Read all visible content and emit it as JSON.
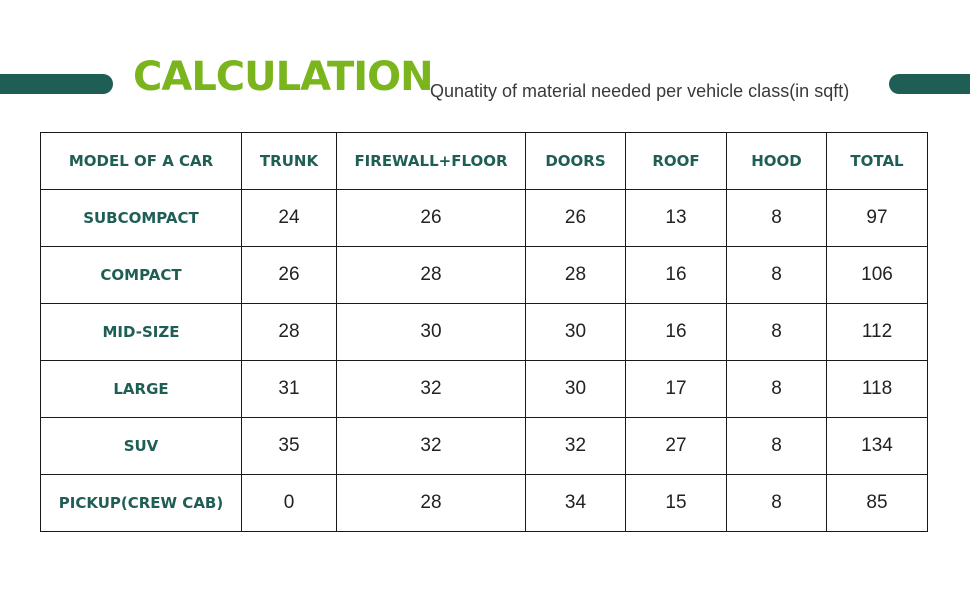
{
  "header": {
    "title": "CALCULATION",
    "subtitle": "Qunatity of material needed per vehicle class(in sqft)"
  },
  "colors": {
    "title_green": "#7ab51d",
    "accent_teal": "#1f5e55"
  },
  "chart_data": {
    "type": "table",
    "columns": [
      "MODEL OF A CAR",
      "TRUNK",
      "FIREWALL+FLOOR",
      "DOORS",
      "ROOF",
      "HOOD",
      "TOTAL"
    ],
    "rows": [
      {
        "model": "SUBCOMPACT",
        "values": [
          "24",
          "26",
          "26",
          "13",
          "8",
          "97"
        ]
      },
      {
        "model": "COMPACT",
        "values": [
          "26",
          "28",
          "28",
          "16",
          "8",
          "106"
        ]
      },
      {
        "model": "MID-SIZE",
        "values": [
          "28",
          "30",
          "30",
          "16",
          "8",
          "112"
        ]
      },
      {
        "model": "LARGE",
        "values": [
          "31",
          "32",
          "30",
          "17",
          "8",
          "118"
        ]
      },
      {
        "model": "SUV",
        "values": [
          "35",
          "32",
          "32",
          "27",
          "8",
          "134"
        ]
      },
      {
        "model": "PICKUP(CREW CAB)",
        "values": [
          "0",
          "28",
          "34",
          "15",
          "8",
          "85"
        ]
      }
    ]
  }
}
